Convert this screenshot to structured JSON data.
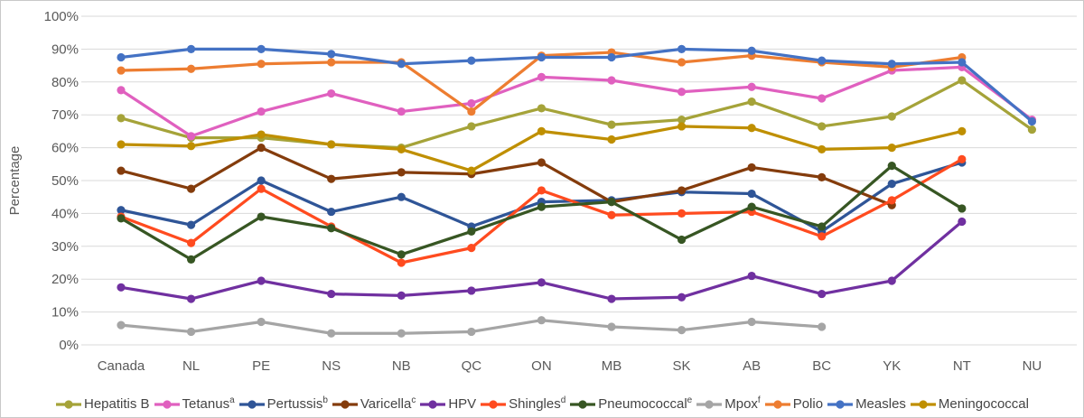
{
  "chart_data": {
    "type": "line",
    "title": "",
    "xlabel": "",
    "ylabel": "Percentage",
    "ylim": [
      0,
      100
    ],
    "ytick_step": 10,
    "ytick_suffix": "%",
    "grid": "horizontal",
    "grid_color": "#d9d9d9",
    "legend_position": "bottom",
    "categories": [
      "Canada",
      "NL",
      "PE",
      "NS",
      "NB",
      "QC",
      "ON",
      "MB",
      "SK",
      "AB",
      "BC",
      "YK",
      "NT",
      "NU"
    ],
    "series": [
      {
        "name": "Hepatitis B",
        "sup": "",
        "color": "#a5a339",
        "values": [
          69,
          63,
          63,
          61,
          60,
          66.5,
          72,
          67,
          68.5,
          74,
          66.5,
          69.5,
          80.5,
          65.5
        ]
      },
      {
        "name": "Tetanus",
        "sup": "a",
        "color": "#e060bf",
        "values": [
          77.5,
          63.5,
          71,
          76.5,
          71,
          73.5,
          81.5,
          80.5,
          77,
          78.5,
          75,
          83.5,
          84.5,
          68.5
        ]
      },
      {
        "name": "Pertussis",
        "sup": "b",
        "color": "#2f5597",
        "values": [
          41,
          36.5,
          50,
          40.5,
          45,
          36,
          43.5,
          44,
          46.5,
          46,
          34.5,
          49,
          55.5,
          null
        ]
      },
      {
        "name": "Varicella",
        "sup": "c",
        "color": "#843c0c",
        "values": [
          53,
          47.5,
          60,
          50.5,
          52.5,
          52,
          55.5,
          43.5,
          47,
          54,
          51,
          42.5,
          null,
          null
        ]
      },
      {
        "name": "HPV",
        "sup": "",
        "color": "#7030a0",
        "values": [
          17.5,
          14,
          19.5,
          15.5,
          15,
          16.5,
          19,
          14,
          14.5,
          21,
          15.5,
          19.5,
          37.5,
          null
        ]
      },
      {
        "name": "Shingles",
        "sup": "d",
        "color": "#ff4b1f",
        "values": [
          39,
          31,
          47.5,
          36,
          25,
          29.5,
          47,
          39.5,
          40,
          40.5,
          33,
          44,
          56.5,
          null
        ]
      },
      {
        "name": "Pneumococcal",
        "sup": "e",
        "color": "#375623",
        "values": [
          38.5,
          26,
          39,
          35.5,
          27.5,
          34.5,
          42,
          43.5,
          32,
          42,
          36,
          54.5,
          41.5,
          null
        ]
      },
      {
        "name": "Mpox",
        "sup": "f",
        "color": "#a5a5a5",
        "values": [
          6,
          4,
          7,
          3.5,
          3.5,
          4,
          7.5,
          5.5,
          4.5,
          7,
          5.5,
          null,
          null,
          null
        ]
      },
      {
        "name": "Polio",
        "sup": "",
        "color": "#ed7d31",
        "values": [
          83.5,
          84,
          85.5,
          86,
          86,
          71,
          88,
          89,
          86,
          88,
          86,
          84.5,
          87.5,
          null
        ]
      },
      {
        "name": "Measles",
        "sup": "",
        "color": "#4472c4",
        "values": [
          87.5,
          90,
          90,
          88.5,
          85.5,
          86.5,
          87.5,
          87.5,
          90,
          89.5,
          86.5,
          85.5,
          86,
          68
        ]
      },
      {
        "name": "Meningococcal",
        "sup": "",
        "color": "#bf8f00",
        "values": [
          61,
          60.5,
          64,
          61,
          59.5,
          53,
          65,
          62.5,
          66.5,
          66,
          59.5,
          60,
          65,
          null
        ]
      }
    ]
  }
}
